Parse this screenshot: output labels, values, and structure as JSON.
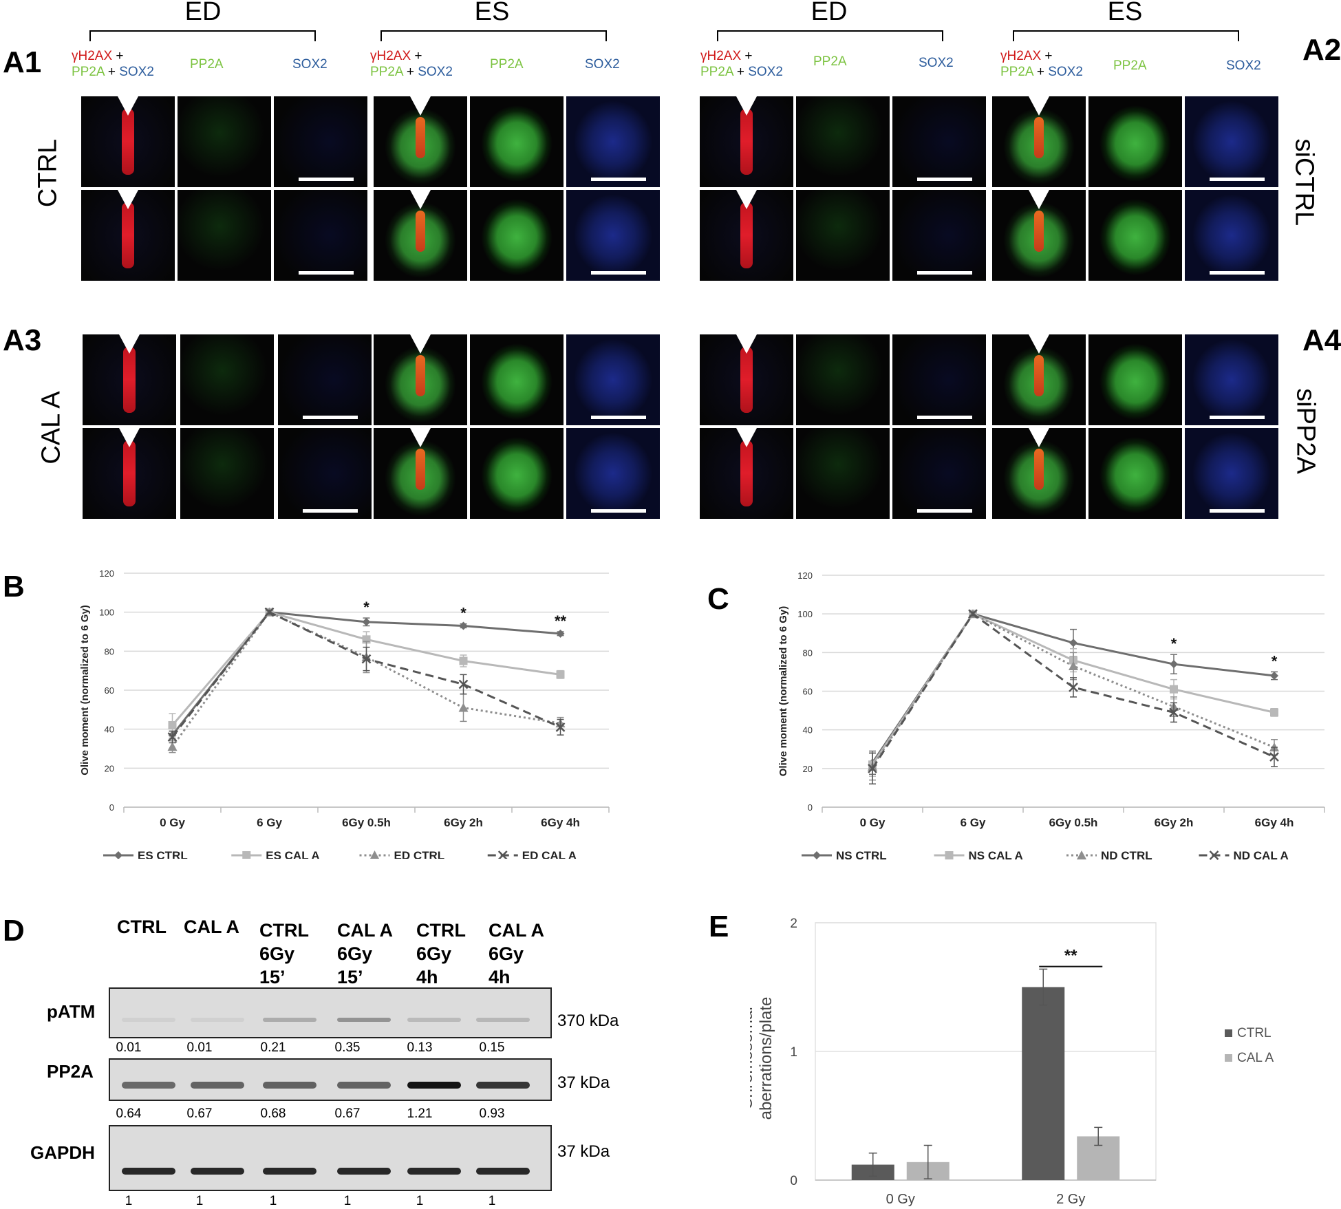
{
  "panelA": {
    "labels": {
      "a1": "A1",
      "a2": "A2",
      "a3": "A3",
      "a4": "A4"
    },
    "groups": {
      "ed": "ED",
      "es": "ES"
    },
    "channels": {
      "gh2ax": "γH2AX",
      "plus": "+",
      "pp2a": "PP2A",
      "sox2": "SOX2"
    },
    "rows": {
      "ctrl": "CTRL",
      "cala": "CAL A",
      "sictrl": "siCTRL",
      "sipp2a": "siPP2A"
    }
  },
  "panelB": {
    "label": "B",
    "chart_data": {
      "type": "line",
      "categories": [
        "0 Gy",
        "6 Gy",
        "6Gy 0.5h",
        "6Gy 2h",
        "6Gy 4h"
      ],
      "ylabel": "Olive moment (normalized to 6 Gy)",
      "ylim": [
        0,
        120
      ],
      "yticks": [
        "0",
        "20",
        "40",
        "60",
        "80",
        "100",
        "120"
      ],
      "series": [
        {
          "name": "ES CTRL",
          "values": [
            37,
            100,
            95,
            93,
            89
          ],
          "err": [
            2,
            1,
            2,
            1,
            1
          ],
          "color": "#6e6e6e",
          "dash": "",
          "marker": "diamond"
        },
        {
          "name": "ES CAL A",
          "values": [
            42,
            100,
            86,
            75,
            68
          ],
          "err": [
            6,
            1,
            4,
            3,
            2
          ],
          "color": "#b8b8b8",
          "dash": "",
          "marker": "square"
        },
        {
          "name": "ED CTRL",
          "values": [
            31,
            100,
            77,
            51,
            43
          ],
          "err": [
            3,
            1,
            8,
            7,
            3
          ],
          "color": "#8e8e8e",
          "dash": "3,4",
          "marker": "triangle"
        },
        {
          "name": "ED CAL A",
          "values": [
            36,
            100,
            76,
            63,
            41
          ],
          "err": [
            3,
            1,
            6,
            5,
            4
          ],
          "color": "#555555",
          "dash": "12,7",
          "marker": "x"
        }
      ],
      "annotations": [
        {
          "category": "6Gy 0.5h",
          "text": "*"
        },
        {
          "category": "6Gy 2h",
          "text": "*"
        },
        {
          "category": "6Gy 4h",
          "text": "**"
        }
      ]
    }
  },
  "panelC": {
    "label": "C",
    "chart_data": {
      "type": "line",
      "categories": [
        "0 Gy",
        "6 Gy",
        "6Gy 0.5h",
        "6Gy 2h",
        "6Gy 4h"
      ],
      "ylabel": "Olive moment (normalized to 6 Gy)",
      "ylim": [
        0,
        120
      ],
      "yticks": [
        "0",
        "20",
        "40",
        "60",
        "80",
        "100",
        "120"
      ],
      "series": [
        {
          "name": "NS CTRL",
          "values": [
            23,
            100,
            85,
            74,
            68
          ],
          "err": [
            6,
            1,
            7,
            5,
            2
          ],
          "color": "#6e6e6e",
          "dash": "",
          "marker": "diamond"
        },
        {
          "name": "NS CAL A",
          "values": [
            22,
            100,
            76,
            61,
            49
          ],
          "err": [
            6,
            1,
            6,
            5,
            2
          ],
          "color": "#b8b8b8",
          "dash": "",
          "marker": "square"
        },
        {
          "name": "ND CTRL",
          "values": [
            21,
            100,
            73,
            52,
            31
          ],
          "err": [
            7,
            1,
            7,
            5,
            4
          ],
          "color": "#8e8e8e",
          "dash": "3,4",
          "marker": "triangle"
        },
        {
          "name": "ND CAL A",
          "values": [
            20,
            100,
            62,
            49,
            26
          ],
          "err": [
            8,
            1,
            5,
            5,
            5
          ],
          "color": "#555555",
          "dash": "12,7",
          "marker": "x"
        }
      ],
      "annotations": [
        {
          "category": "6Gy 2h",
          "text": "*"
        },
        {
          "category": "6Gy 4h",
          "text": "*"
        }
      ]
    }
  },
  "panelD": {
    "label": "D",
    "lanes": [
      {
        "l1": "CTRL",
        "l2": "",
        "l3": ""
      },
      {
        "l1": "CAL A",
        "l2": "",
        "l3": ""
      },
      {
        "l1": "CTRL",
        "l2": "6Gy",
        "l3": "15’"
      },
      {
        "l1": "CAL A",
        "l2": "6Gy",
        "l3": "15’"
      },
      {
        "l1": "CTRL",
        "l2": "6Gy",
        "l3": "4h"
      },
      {
        "l1": "CAL A",
        "l2": "6Gy",
        "l3": "4h"
      }
    ],
    "blots": [
      {
        "label": "pATM",
        "kda": "370 kDa",
        "quant": [
          "0.01",
          "0.01",
          "0.21",
          "0.35",
          "0.13",
          "0.15"
        ],
        "band_intensity": [
          0.01,
          0.01,
          0.21,
          0.35,
          0.13,
          0.15
        ]
      },
      {
        "label": "PP2A",
        "kda": "37 kDa",
        "quant": [
          "0.64",
          "0.67",
          "0.68",
          "0.67",
          "1.21",
          "0.93"
        ],
        "band_intensity": [
          0.64,
          0.67,
          0.68,
          0.67,
          1.21,
          0.93
        ]
      },
      {
        "label": "GAPDH",
        "kda": "37 kDa",
        "quant": [
          "1",
          "1",
          "1",
          "1",
          "1",
          "1"
        ],
        "band_intensity": [
          1,
          1,
          1,
          1,
          1,
          1
        ]
      }
    ]
  },
  "panelE": {
    "label": "E",
    "chart_data": {
      "type": "bar",
      "categories": [
        "0 Gy",
        "2 Gy"
      ],
      "ylabel": "Chromosomal aberrations/plate",
      "ylim": [
        0,
        2
      ],
      "yticks": [
        "0",
        "1",
        "2"
      ],
      "series": [
        {
          "name": "CTRL",
          "values": [
            0.12,
            1.5
          ],
          "err": [
            0.09,
            0.14
          ],
          "color": "#5a5a5a"
        },
        {
          "name": "CAL A",
          "values": [
            0.14,
            0.34
          ],
          "err": [
            0.13,
            0.07
          ],
          "color": "#b5b5b5"
        }
      ],
      "annotations": [
        {
          "category": "2 Gy",
          "text": "**"
        }
      ]
    }
  }
}
